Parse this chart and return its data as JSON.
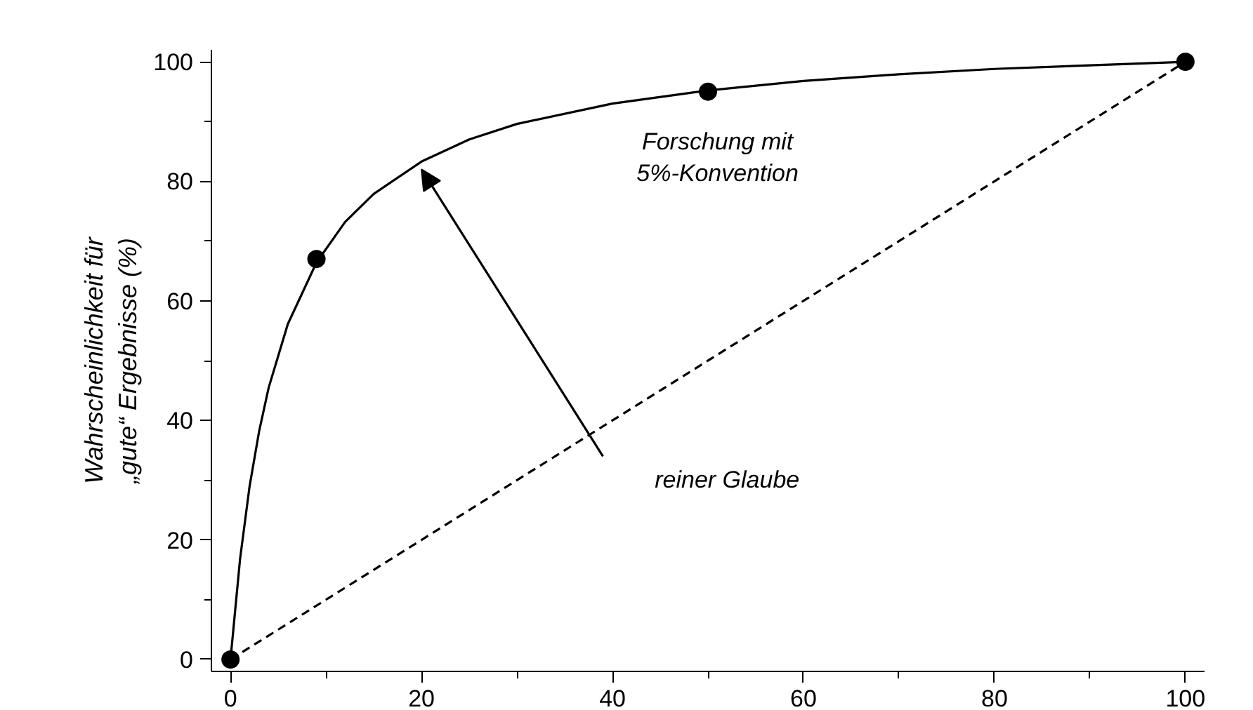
{
  "chart_data": {
    "type": "line",
    "ylabel": "Wahrscheinlichkeit für\n„gute“ Ergebnisse (%)",
    "xlim": [
      -2,
      102
    ],
    "ylim": [
      -2,
      102
    ],
    "xticks": [
      0,
      20,
      40,
      60,
      80,
      100
    ],
    "yticks": [
      0,
      20,
      40,
      60,
      80,
      100
    ],
    "grid": false,
    "series": [
      {
        "color": "#000000",
        "line_style": "solid",
        "marker": "none",
        "x": [
          0,
          1,
          2,
          3,
          4,
          6,
          9,
          12,
          15,
          20,
          25,
          30,
          40,
          50,
          60,
          70,
          80,
          90,
          100
        ],
        "values": [
          0,
          16.8,
          29,
          38.2,
          45.5,
          56.1,
          66.4,
          73.2,
          77.9,
          83.3,
          87,
          89.6,
          93,
          95.2,
          96.8,
          97.9,
          98.8,
          99.4,
          100
        ]
      },
      {
        "type": "scatter",
        "color": "#000000",
        "marker": "circle",
        "x": [
          0,
          9,
          50,
          100
        ],
        "values": [
          0,
          67,
          95,
          100
        ]
      },
      {
        "color": "#000000",
        "line_style": "dashed",
        "marker": "none",
        "x": [
          0,
          100
        ],
        "values": [
          0,
          100
        ]
      }
    ],
    "annotations": [
      "Forschung mit\n5%-Konvention",
      "reiner Glaube"
    ]
  }
}
